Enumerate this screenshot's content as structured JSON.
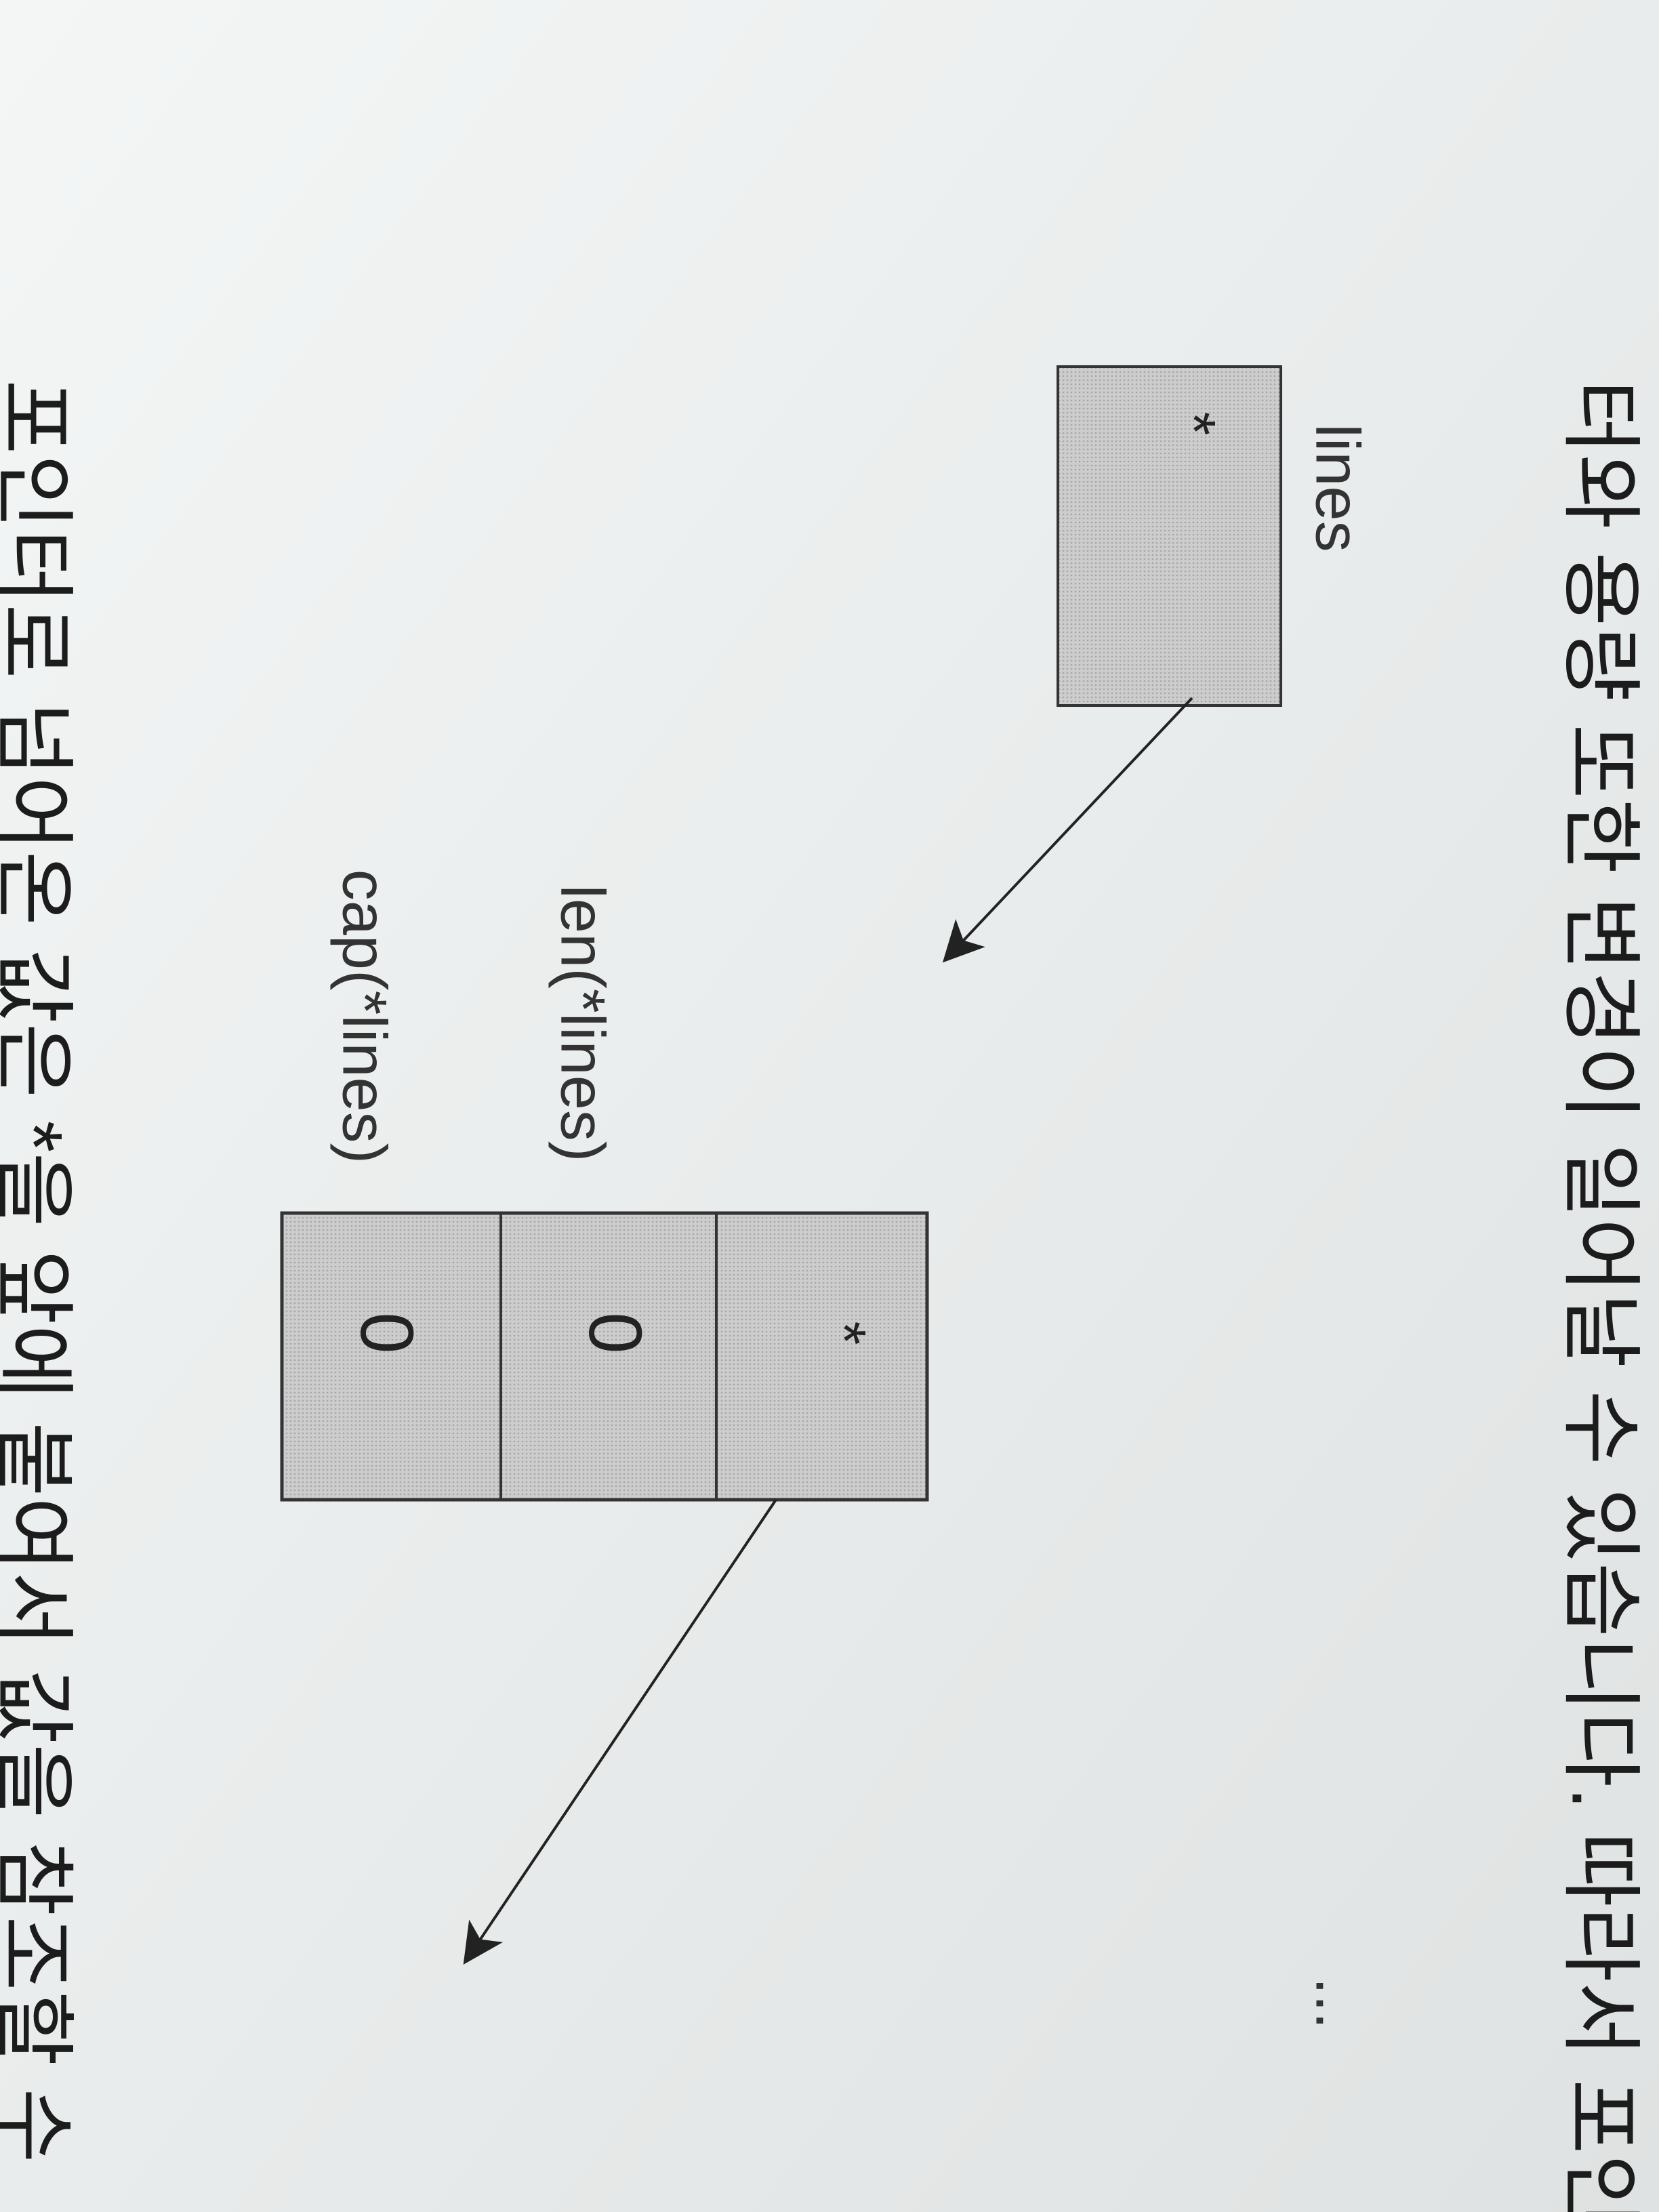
{
  "text_lines": [
    "터와 용량 또한 변경이 일어날 수 있습니다. 따라서 포인",
    "포인터로 넘어온 값은 *을 앞에 붙여서 값을 참조할 수"
  ],
  "diagram": {
    "pointer": {
      "label": "lines",
      "value": "*"
    },
    "slice": {
      "cells": [
        "*",
        "0",
        "0"
      ],
      "len_label": "len(*lines)",
      "cap_label": "cap(*lines)"
    },
    "continuation": "..."
  }
}
